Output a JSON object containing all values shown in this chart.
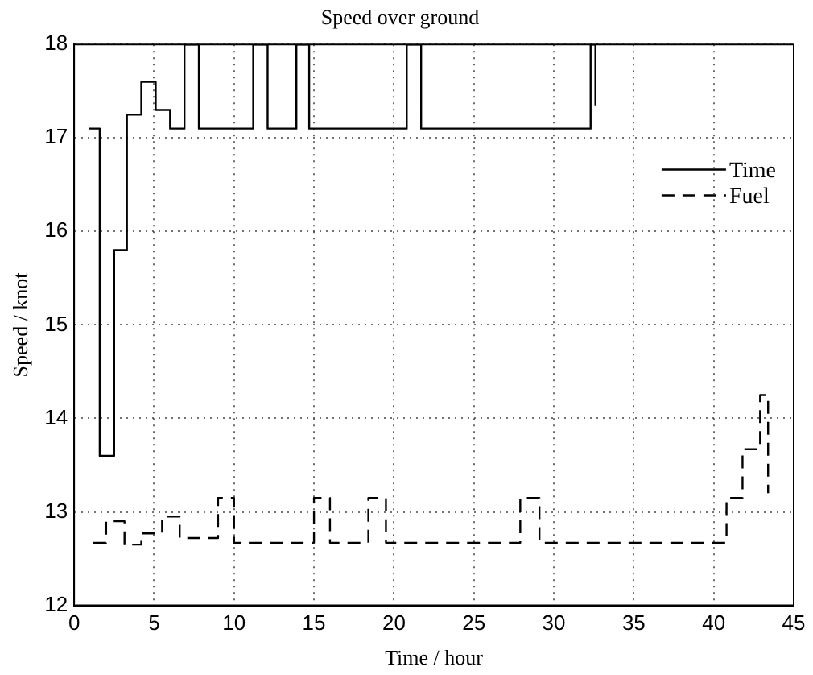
{
  "chart_data": {
    "type": "step",
    "title": "Speed over ground",
    "xlabel": "Time / hour",
    "ylabel": "Speed / knot",
    "xlim": [
      0,
      45
    ],
    "xticks": [
      0,
      5,
      10,
      15,
      20,
      25,
      30,
      35,
      40,
      45
    ],
    "ylim": [
      12,
      18
    ],
    "yticks": [
      12,
      13,
      14,
      15,
      16,
      17,
      18
    ],
    "grid": true,
    "legend": "right",
    "marker": "none",
    "series": [
      {
        "name": "Time",
        "color": "#000000",
        "line_style": "solid",
        "x": [
          0.9,
          1.6,
          2.5,
          3.3,
          4.2,
          5.1,
          6.0,
          6.9,
          7.8,
          11.2,
          12.1,
          13.9,
          14.7,
          20.8,
          21.7,
          32.3,
          32.6
        ],
        "values": [
          17.1,
          13.6,
          15.8,
          17.25,
          17.6,
          17.3,
          17.1,
          18,
          17.1,
          18,
          17.1,
          18,
          17.1,
          18,
          17.1,
          18,
          17.35
        ]
      },
      {
        "name": "Fuel",
        "color": "#000000",
        "line_style": "dashed",
        "x": [
          1.2,
          2.0,
          3.15,
          4.2,
          5.5,
          6.6,
          9.0,
          10.0,
          15.0,
          16.0,
          18.4,
          19.5,
          27.9,
          29.1,
          40.8,
          41.8,
          42.9,
          43.4
        ],
        "values": [
          12.67,
          12.9,
          12.65,
          12.77,
          12.95,
          12.72,
          13.15,
          12.67,
          13.15,
          12.67,
          13.15,
          12.67,
          13.15,
          12.67,
          13.15,
          13.67,
          14.25,
          13.2
        ]
      }
    ]
  }
}
